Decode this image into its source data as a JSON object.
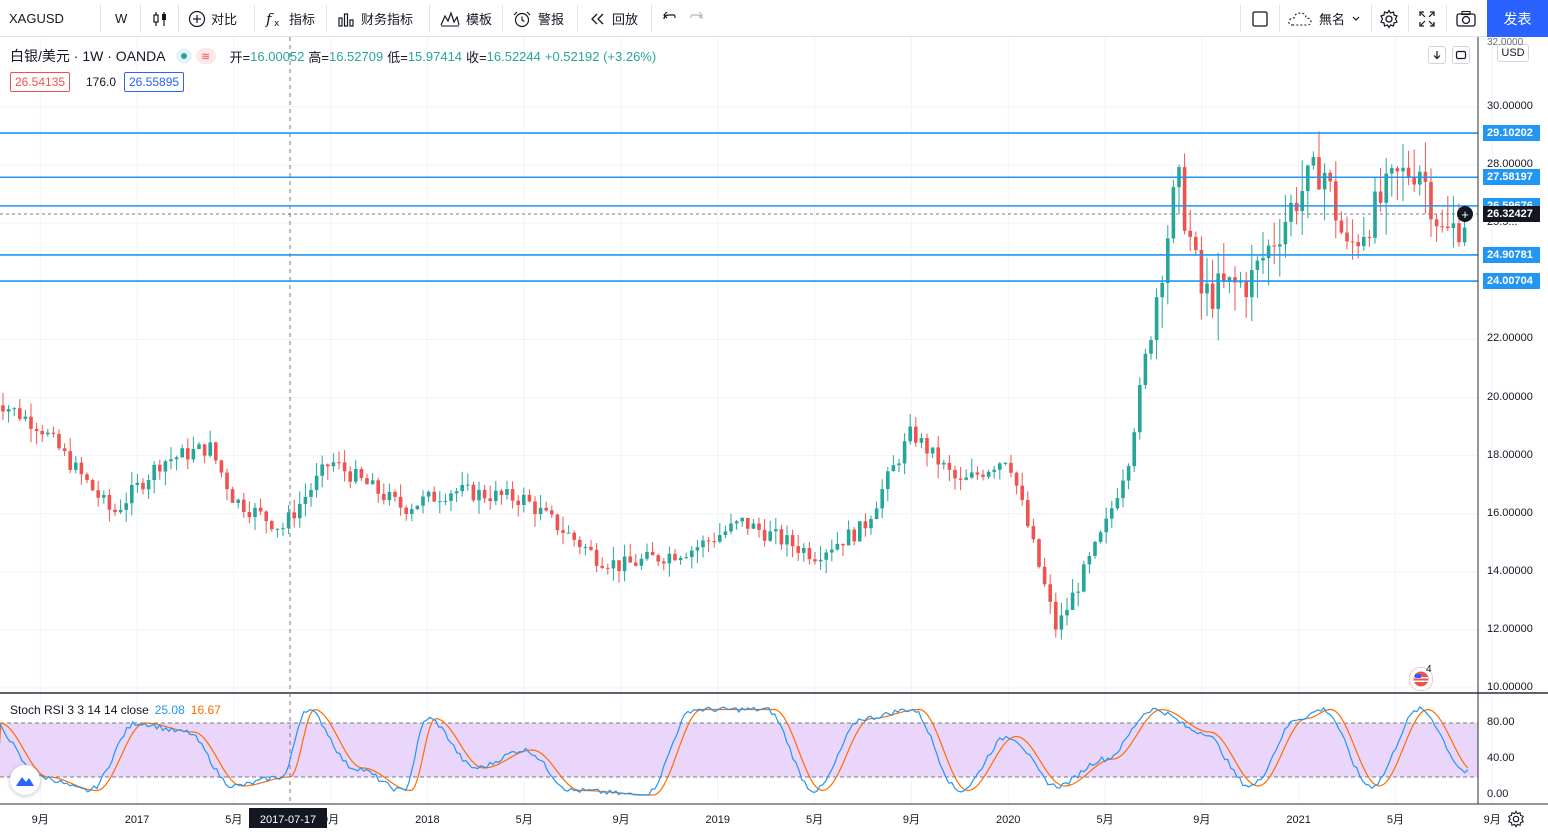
{
  "toolbar": {
    "symbol": "XAGUSD",
    "interval": "W",
    "compare_label": "对比",
    "indicators_label": "指标",
    "financials_label": "财务指标",
    "templates_label": "模板",
    "alert_label": "警报",
    "replay_label": "回放",
    "layout_name": "無名",
    "publish_label": "发表"
  },
  "legend": {
    "title": "白银/美元 · 1W · OANDA",
    "open_label": "开=",
    "open": "16.00052",
    "high_label": "高=",
    "high": "16.52709",
    "low_label": "低=",
    "low": "15.97414",
    "close_label": "收=",
    "close": "16.52244",
    "change": "+0.52192 (+3.26%)",
    "bid": "26.54135",
    "spread": "176.0",
    "ask": "26.55895"
  },
  "price_axis": {
    "currency": "USD",
    "labels": [
      "10.00000",
      "12.00000",
      "14.00000",
      "16.00000",
      "18.00000",
      "20.00000",
      "22.00000",
      "30.00000"
    ],
    "top_partial": "32.0000",
    "hidden_partial_1": "28.00000",
    "hidden_partial_2": "25.5...",
    "current_price": "26.32427",
    "levels": [
      "29.10202",
      "27.58197",
      "26.59676",
      "24.90781",
      "24.00704"
    ]
  },
  "time_axis": {
    "labels": [
      "9月",
      "2017",
      "5月",
      "9月",
      "2018",
      "5月",
      "9月",
      "2019",
      "5月",
      "9月",
      "2020",
      "5月",
      "9月",
      "2021",
      "5月",
      "9月"
    ],
    "crosshair_date": "2017-07-17"
  },
  "indicator": {
    "name": "Stoch RSI 3 3 14 14 close",
    "k": "25.08",
    "d": "16.67",
    "axis_labels": [
      "80.00",
      "40.00",
      "0.00"
    ],
    "k_color": "#2196f3",
    "d_color": "#ff6d00"
  },
  "events_badge": "4",
  "colors": {
    "up": "#26a69a",
    "down": "#ef5350",
    "level": "#2196f3",
    "accent": "#2962ff",
    "band": "#e8d2fb"
  },
  "chart_data": {
    "type": "candlestick",
    "symbol": "XAGUSD",
    "interval": "1W",
    "ylim": [
      10,
      32
    ],
    "horizontal_levels": [
      29.10202,
      27.58197,
      26.59676,
      24.90781,
      24.00704
    ],
    "keypoints": [
      {
        "x": "2016-07",
        "y": 20.0
      },
      {
        "x": "2016-09",
        "y": 19.0
      },
      {
        "x": "2016-11",
        "y": 17.0
      },
      {
        "x": "2016-12",
        "y": 16.0
      },
      {
        "x": "2017-02",
        "y": 17.8
      },
      {
        "x": "2017-04",
        "y": 18.3
      },
      {
        "x": "2017-05",
        "y": 16.5
      },
      {
        "x": "2017-07",
        "y": 15.5
      },
      {
        "x": "2017-09",
        "y": 17.8
      },
      {
        "x": "2017-12",
        "y": 16.2
      },
      {
        "x": "2018-02",
        "y": 16.8
      },
      {
        "x": "2018-05",
        "y": 16.5
      },
      {
        "x": "2018-08",
        "y": 14.5
      },
      {
        "x": "2018-09",
        "y": 14.2
      },
      {
        "x": "2018-12",
        "y": 14.8
      },
      {
        "x": "2019-02",
        "y": 15.7
      },
      {
        "x": "2019-05",
        "y": 14.6
      },
      {
        "x": "2019-07",
        "y": 15.5
      },
      {
        "x": "2019-09",
        "y": 18.8
      },
      {
        "x": "2019-11",
        "y": 17.0
      },
      {
        "x": "2020-01",
        "y": 18.0
      },
      {
        "x": "2020-03",
        "y": 12.0
      },
      {
        "x": "2020-05",
        "y": 15.5
      },
      {
        "x": "2020-06",
        "y": 18.0
      },
      {
        "x": "2020-07",
        "y": 23.0
      },
      {
        "x": "2020-08",
        "y": 27.5
      },
      {
        "x": "2020-09",
        "y": 23.5
      },
      {
        "x": "2020-11",
        "y": 24.0
      },
      {
        "x": "2021-01",
        "y": 27.0
      },
      {
        "x": "2021-02",
        "y": 28.0
      },
      {
        "x": "2021-03",
        "y": 25.0
      },
      {
        "x": "2021-05",
        "y": 27.5
      },
      {
        "x": "2021-06",
        "y": 28.0
      },
      {
        "x": "2021-07",
        "y": 25.5
      },
      {
        "x": "2021-07-31",
        "y": 26.3
      }
    ],
    "stoch_rsi": {
      "k": 25.08,
      "d": 16.67,
      "levels": [
        80,
        20
      ],
      "keypoints": [
        {
          "x": "2016-07",
          "y": 80
        },
        {
          "x": "2016-09",
          "y": 20
        },
        {
          "x": "2016-11",
          "y": 5
        },
        {
          "x": "2017-01",
          "y": 80
        },
        {
          "x": "2017-03",
          "y": 70
        },
        {
          "x": "2017-05",
          "y": 10
        },
        {
          "x": "2017-07",
          "y": 20
        },
        {
          "x": "2017-08",
          "y": 95
        },
        {
          "x": "2017-10",
          "y": 30
        },
        {
          "x": "2017-12",
          "y": 5
        },
        {
          "x": "2018-01",
          "y": 85
        },
        {
          "x": "2018-03",
          "y": 30
        },
        {
          "x": "2018-05",
          "y": 50
        },
        {
          "x": "2018-07",
          "y": 5
        },
        {
          "x": "2018-10",
          "y": 0
        },
        {
          "x": "2018-12",
          "y": 95
        },
        {
          "x": "2019-03",
          "y": 95
        },
        {
          "x": "2019-05",
          "y": 5
        },
        {
          "x": "2019-07",
          "y": 85
        },
        {
          "x": "2019-09",
          "y": 95
        },
        {
          "x": "2019-11",
          "y": 5
        },
        {
          "x": "2020-01",
          "y": 65
        },
        {
          "x": "2020-03",
          "y": 10
        },
        {
          "x": "2020-05",
          "y": 40
        },
        {
          "x": "2020-07",
          "y": 95
        },
        {
          "x": "2020-09",
          "y": 70
        },
        {
          "x": "2020-11",
          "y": 10
        },
        {
          "x": "2021-01",
          "y": 85
        },
        {
          "x": "2021-02",
          "y": 95
        },
        {
          "x": "2021-04",
          "y": 10
        },
        {
          "x": "2021-06",
          "y": 95
        },
        {
          "x": "2021-07-31",
          "y": 25
        }
      ]
    }
  }
}
